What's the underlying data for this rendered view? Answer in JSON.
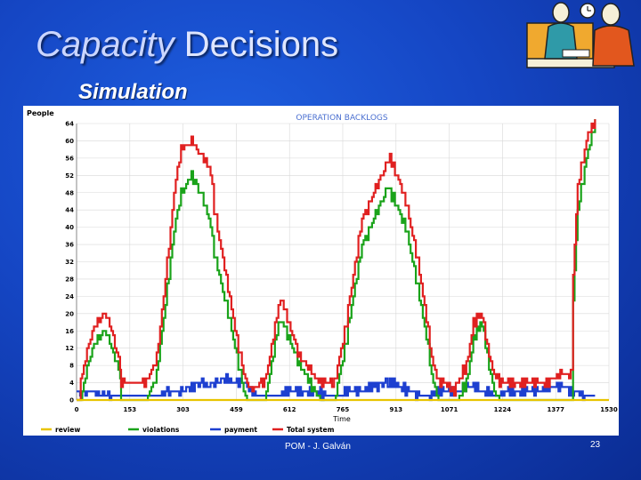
{
  "slide": {
    "title_italic": "Capacity",
    "title_rest": " Decisions",
    "subtitle": "Simulation",
    "footer": "POM - J. Galván",
    "page_number": "23"
  },
  "chart_data": {
    "type": "line",
    "title": "OPERATION BACKLOGS",
    "ylabel": "People",
    "xlabel": "Time",
    "ylim": [
      0,
      64
    ],
    "xlim": [
      0,
      1530
    ],
    "yticks": [
      0,
      4,
      8,
      12,
      16,
      20,
      24,
      28,
      32,
      36,
      40,
      44,
      48,
      52,
      56,
      60,
      64
    ],
    "xticks": [
      "0",
      "153",
      "303",
      "459",
      "612",
      "765",
      "913",
      "1071",
      "1224",
      "1377",
      "1530"
    ],
    "series": [
      {
        "name": "review",
        "color": "#e8c400",
        "x": [
          0,
          1530
        ],
        "values": [
          0,
          0
        ]
      },
      {
        "name": "violations",
        "color": "#1aa31a",
        "x": [
          0,
          5,
          12,
          25,
          50,
          80,
          95,
          100,
          125,
          128,
          170,
          180,
          185,
          200,
          230,
          260,
          280,
          290,
          300,
          330,
          360,
          380,
          385,
          390,
          395,
          430,
          435,
          460,
          480,
          490,
          498,
          500,
          525,
          540,
          555,
          580,
          586,
          600,
          640,
          700,
          725,
          734,
          740,
          770,
          820,
          888,
          893,
          900,
          920,
          945,
          950,
          960,
          985,
          1010,
          1020,
          1040,
          1050,
          1060,
          1078,
          1080,
          1085,
          1090,
          1095,
          1120,
          1140,
          1160,
          1170,
          1180,
          1200,
          1215,
          1250,
          1300,
          1350,
          1390,
          1410,
          1420,
          1423,
          1427,
          1440,
          1470,
          1490
        ],
        "values": [
          0,
          0,
          0,
          6,
          13,
          16,
          14,
          12,
          6,
          0,
          0,
          0,
          0,
          0,
          6,
          26,
          39,
          44,
          48,
          52,
          47,
          42,
          40,
          38,
          34,
          22,
          20,
          10,
          2,
          0,
          0,
          0,
          0,
          0,
          6,
          18,
          19,
          16,
          8,
          0,
          0,
          0,
          0,
          12,
          36,
          48,
          50,
          48,
          45,
          40,
          38,
          34,
          24,
          12,
          6,
          0,
          0,
          0,
          0,
          0,
          0,
          0,
          0,
          4,
          14,
          18,
          16,
          10,
          2,
          0,
          0,
          0,
          0,
          0,
          0,
          0,
          0,
          22,
          44,
          58,
          64
        ]
      },
      {
        "name": "payment",
        "color": "#1d3fd0",
        "x": [
          0,
          50,
          100,
          128,
          150,
          180,
          200,
          230,
          260,
          280,
          300,
          330,
          360,
          380,
          390,
          400,
          430,
          460,
          480,
          490,
          500,
          525,
          540,
          555,
          580,
          600,
          630,
          660,
          690,
          720,
          734,
          750,
          780,
          810,
          850,
          888,
          900,
          930,
          960,
          985,
          1010,
          1040,
          1060,
          1080,
          1100,
          1120,
          1140,
          1160,
          1180,
          1200,
          1215,
          1240,
          1280,
          1320,
          1360,
          1390,
          1420,
          1440,
          1460,
          1480,
          1490
        ],
        "values": [
          2,
          2,
          1,
          1,
          1,
          1,
          1,
          1,
          2,
          2,
          2,
          3,
          4,
          3,
          4,
          4,
          5,
          4,
          4,
          3,
          2,
          1,
          1,
          1,
          1,
          2,
          2,
          2,
          2,
          1,
          1,
          1,
          2,
          2,
          3,
          4,
          4,
          3,
          2,
          1,
          1,
          2,
          2,
          2,
          2,
          3,
          3,
          2,
          2,
          1,
          1,
          2,
          2,
          2,
          3,
          3,
          2,
          2,
          1,
          1,
          1
        ]
      },
      {
        "name": "Total system",
        "color": "#e02020",
        "x": [
          0,
          5,
          12,
          25,
          50,
          80,
          95,
          100,
          125,
          128,
          170,
          180,
          185,
          200,
          230,
          260,
          280,
          290,
          300,
          330,
          360,
          380,
          385,
          390,
          395,
          430,
          435,
          460,
          480,
          490,
          498,
          500,
          525,
          540,
          555,
          580,
          586,
          600,
          640,
          700,
          725,
          734,
          740,
          770,
          820,
          888,
          893,
          900,
          920,
          945,
          950,
          960,
          985,
          1010,
          1020,
          1040,
          1050,
          1060,
          1078,
          1080,
          1085,
          1090,
          1095,
          1120,
          1140,
          1160,
          1170,
          1180,
          1200,
          1215,
          1250,
          1300,
          1350,
          1390,
          1410,
          1420,
          1423,
          1427,
          1440,
          1470,
          1490
        ],
        "values": [
          0,
          0,
          4,
          10,
          17,
          20,
          18,
          16,
          8,
          4,
          4,
          4,
          4,
          4,
          10,
          32,
          48,
          54,
          58,
          60,
          56,
          54,
          52,
          50,
          44,
          28,
          26,
          14,
          6,
          4,
          4,
          2,
          4,
          4,
          10,
          22,
          24,
          20,
          10,
          4,
          4,
          4,
          4,
          16,
          42,
          54,
          56,
          56,
          52,
          46,
          44,
          40,
          30,
          16,
          10,
          4,
          4,
          4,
          2,
          2,
          2,
          4,
          4,
          8,
          18,
          20,
          18,
          12,
          6,
          4,
          4,
          4,
          4,
          6,
          6,
          6,
          8,
          28,
          50,
          62,
          64
        ]
      }
    ]
  }
}
